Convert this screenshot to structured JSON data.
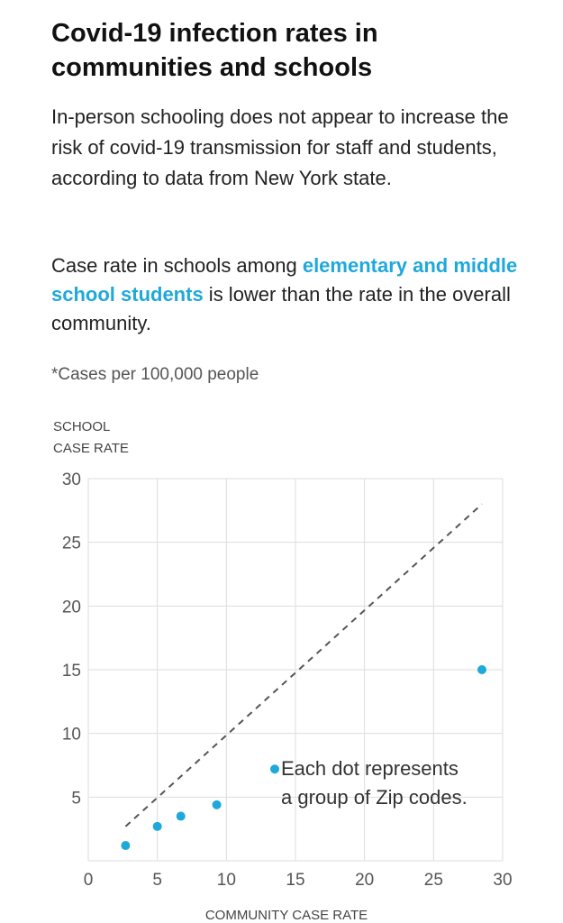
{
  "header": {
    "title": "Covid-19 infection rates in communities and schools",
    "subtitle": "In-person schooling does not appear to increase the risk of covid-19 transmission for staff and students, according to data from New York state."
  },
  "description": {
    "before": "Case rate in schools among ",
    "highlight": "elementary and middle school students",
    "after": " is lower than the rate in the overall community."
  },
  "note": "*Cases per 100,000 people",
  "colors": {
    "accent": "#1fa8dc",
    "dot": "#1fa8dc",
    "grid": "#dddddd",
    "reference_line": "#555555"
  },
  "chart_data": {
    "type": "scatter",
    "title": "",
    "xlabel": "COMMUNITY CASE RATE",
    "ylabel_lines": [
      "SCHOOL",
      "CASE RATE"
    ],
    "xlim": [
      0,
      30
    ],
    "ylim": [
      0,
      30
    ],
    "x_ticks": [
      0,
      5,
      10,
      15,
      20,
      25,
      30
    ],
    "y_ticks": [
      5,
      10,
      15,
      20,
      25,
      30
    ],
    "grid": true,
    "points": [
      {
        "x": 2.7,
        "y": 1.2
      },
      {
        "x": 5.0,
        "y": 2.7
      },
      {
        "x": 6.7,
        "y": 3.5
      },
      {
        "x": 9.3,
        "y": 4.4
      },
      {
        "x": 28.5,
        "y": 15.0
      }
    ],
    "reference_line": {
      "style": "dashed",
      "from": [
        2.7,
        2.7
      ],
      "to": [
        28.5,
        28.0
      ]
    },
    "annotation": {
      "lines": [
        "Each dot represents",
        "a group of Zip codes."
      ],
      "marker_point": {
        "x": 13.5,
        "y": 7.2
      }
    }
  }
}
